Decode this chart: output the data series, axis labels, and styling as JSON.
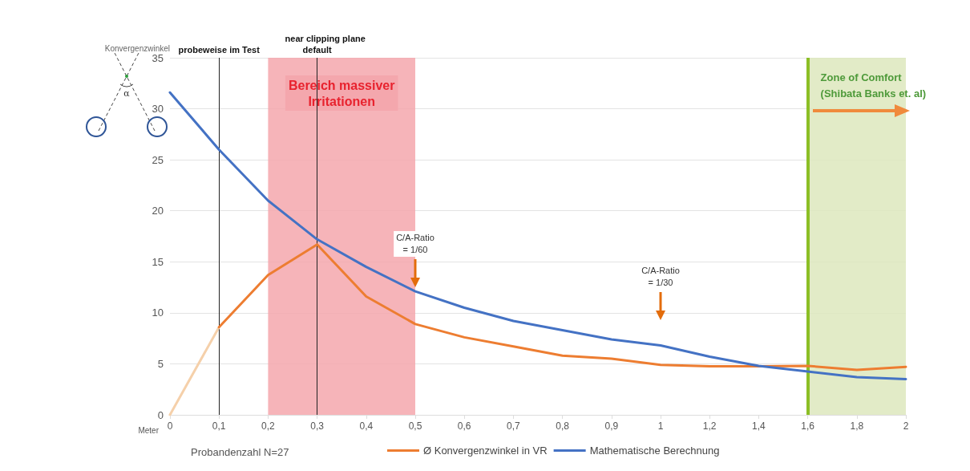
{
  "chart_data": {
    "type": "line",
    "xlabel": "Meter",
    "ylabel": "Konvergenzwinkel",
    "categories": [
      "0",
      "0,1",
      "0,2",
      "0,3",
      "0,4",
      "0,5",
      "0,6",
      "0,7",
      "0,8",
      "0,9",
      "1",
      "1,2",
      "1,4",
      "1,6",
      "1,8",
      "2"
    ],
    "series": [
      {
        "color": "#f5d0aa",
        "values": [
          0,
          8.6,
          null,
          null,
          null,
          null,
          null,
          null,
          null,
          null,
          null,
          null,
          null,
          null,
          null,
          null
        ]
      },
      {
        "name": "Ø Konvergenzwinkel in VR",
        "color": "#ed7d31",
        "values": [
          null,
          8.6,
          13.7,
          16.7,
          11.6,
          8.9,
          7.6,
          6.7,
          5.8,
          5.5,
          4.9,
          4.75,
          4.75,
          4.8,
          4.4,
          4.7
        ]
      },
      {
        "name": "Mathematische Berechnung",
        "color": "#4472c4",
        "values": [
          31.6,
          26,
          21,
          17.2,
          14.5,
          12.1,
          10.5,
          9.2,
          8.3,
          7.4,
          6.8,
          5.7,
          4.8,
          4.25,
          3.7,
          3.5
        ]
      }
    ],
    "ylim": [
      0,
      35
    ],
    "yticks": [
      0,
      5,
      10,
      15,
      20,
      25,
      30,
      35
    ],
    "grid": "y",
    "legend": "bottom",
    "marker": "none",
    "line_style": "solid",
    "ref_lines": [
      {
        "axis": "x",
        "value": "0,1",
        "label": "probeweise im Test",
        "color": "#222222"
      },
      {
        "axis": "x",
        "value": "0,3",
        "label": "default",
        "color": "#222222"
      },
      {
        "axis": "x",
        "value": "1,6",
        "color": "#8cbf26"
      }
    ],
    "bands": [
      {
        "axis": "x",
        "from": "0,2",
        "to": "0,5",
        "label": "Bereich massiver\nIrritationen",
        "color": "#f4a7ad"
      },
      {
        "axis": "x",
        "from": "1,6",
        "to": "2",
        "label": "Zone of Comfort\n(Shibata Banks et. al)",
        "color": "#dde8bd"
      }
    ],
    "annotations": [
      "C/A-Ratio\n= 1/60",
      "C/A-Ratio\n= 1/30",
      "near clipping plane",
      "Probandenzahl N=27",
      "α"
    ]
  }
}
